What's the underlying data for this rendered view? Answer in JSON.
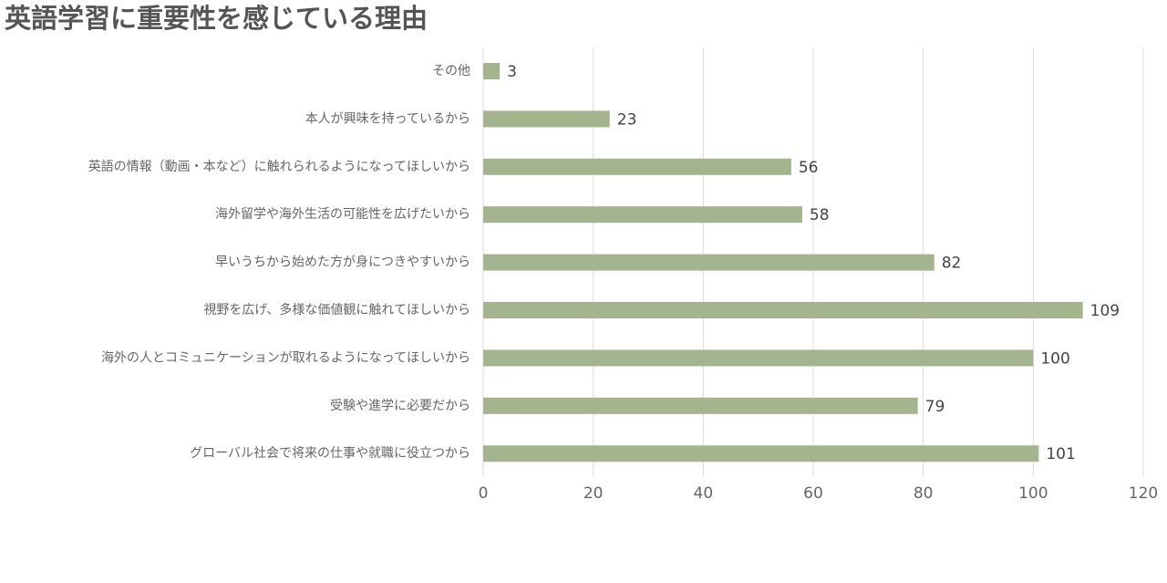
{
  "chart_data": {
    "type": "bar",
    "orientation": "horizontal",
    "title": "英語学習に重要性を感じている理由",
    "categories": [
      "その他",
      "本人が興味を持っているから",
      "英語の情報（動画・本など）に触れられるようになってほしいから",
      "海外留学や海外生活の可能性を広げたいから",
      "早いうちから始めた方が身につきやすいから",
      "視野を広げ、多様な価値観に触れてほしいから",
      "海外の人とコミュニケーションが取れるようになってほしいから",
      "受験や進学に必要だから",
      "グローバル社会で将来の仕事や就職に役立つから"
    ],
    "values": [
      3,
      23,
      56,
      58,
      82,
      109,
      100,
      79,
      101
    ],
    "color": "#a3b48f",
    "xlim": [
      0,
      120
    ],
    "xticks": [
      0,
      20,
      40,
      60,
      80,
      100,
      120
    ],
    "grid": true
  }
}
